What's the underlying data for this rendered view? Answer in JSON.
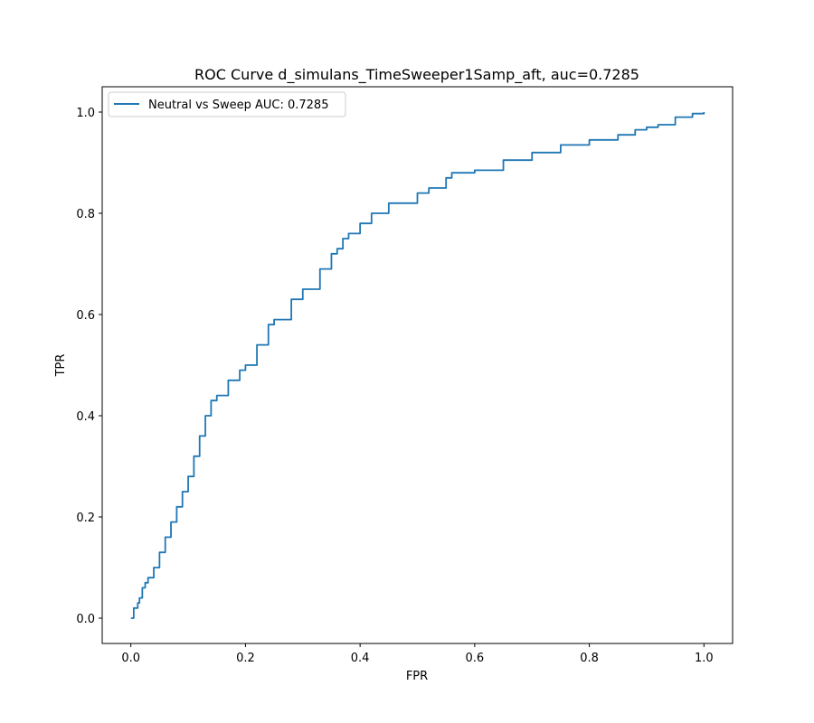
{
  "chart_data": {
    "type": "line",
    "title": "ROC Curve d_simulans_TimeSweeper1Samp_aft, auc=0.7285",
    "xlabel": "FPR",
    "ylabel": "TPR",
    "xlim": [
      -0.05,
      1.05
    ],
    "ylim": [
      -0.05,
      1.05
    ],
    "xticks": [
      0.0,
      0.2,
      0.4,
      0.6,
      0.8,
      1.0
    ],
    "yticks": [
      0.0,
      0.2,
      0.4,
      0.6,
      0.8,
      1.0
    ],
    "xtick_labels": [
      "0.0",
      "0.2",
      "0.4",
      "0.6",
      "0.8",
      "1.0"
    ],
    "ytick_labels": [
      "0.0",
      "0.2",
      "0.4",
      "0.6",
      "0.8",
      "1.0"
    ],
    "grid": false,
    "legend_position": "top-left",
    "series": [
      {
        "name": "Neutral vs Sweep AUC: 0.7285",
        "color": "#1f77b4",
        "x": [
          0.0,
          0.005,
          0.005,
          0.012,
          0.015,
          0.02,
          0.025,
          0.03,
          0.04,
          0.05,
          0.06,
          0.07,
          0.08,
          0.09,
          0.1,
          0.11,
          0.12,
          0.13,
          0.14,
          0.15,
          0.17,
          0.19,
          0.2,
          0.22,
          0.24,
          0.25,
          0.28,
          0.3,
          0.33,
          0.35,
          0.36,
          0.37,
          0.38,
          0.4,
          0.42,
          0.45,
          0.5,
          0.52,
          0.55,
          0.56,
          0.6,
          0.65,
          0.7,
          0.75,
          0.8,
          0.85,
          0.88,
          0.9,
          0.92,
          0.95,
          0.98,
          1.0
        ],
        "y": [
          0.0,
          0.01,
          0.02,
          0.03,
          0.04,
          0.06,
          0.07,
          0.08,
          0.1,
          0.13,
          0.16,
          0.19,
          0.22,
          0.25,
          0.28,
          0.32,
          0.36,
          0.4,
          0.43,
          0.44,
          0.47,
          0.49,
          0.5,
          0.54,
          0.58,
          0.59,
          0.63,
          0.65,
          0.69,
          0.72,
          0.73,
          0.75,
          0.76,
          0.78,
          0.8,
          0.82,
          0.84,
          0.85,
          0.87,
          0.88,
          0.885,
          0.905,
          0.92,
          0.935,
          0.945,
          0.955,
          0.965,
          0.97,
          0.975,
          0.99,
          0.997,
          1.0
        ]
      }
    ]
  }
}
